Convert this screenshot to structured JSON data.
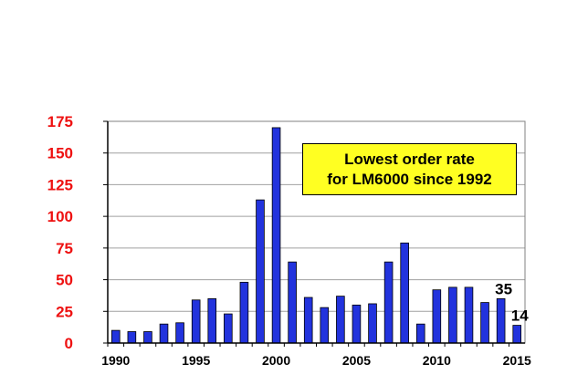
{
  "chart_data": {
    "type": "bar",
    "categories": [
      "1990",
      "1991",
      "1992",
      "1993",
      "1994",
      "1995",
      "1996",
      "1997",
      "1998",
      "1999",
      "2000",
      "2001",
      "2002",
      "2003",
      "2004",
      "2005",
      "2006",
      "2007",
      "2008",
      "2009",
      "2010",
      "2011",
      "2012",
      "2013",
      "2014",
      "2015"
    ],
    "values": [
      10,
      9,
      9,
      15,
      16,
      34,
      35,
      23,
      48,
      113,
      170,
      64,
      36,
      28,
      37,
      30,
      31,
      64,
      79,
      15,
      42,
      44,
      44,
      32,
      35,
      14
    ],
    "x_tick_labels": [
      "1990",
      "1995",
      "2000",
      "2005",
      "2010",
      "2015"
    ],
    "y_tick_labels": [
      "0",
      "25",
      "50",
      "75",
      "100",
      "125",
      "150",
      "175"
    ],
    "ylim": [
      0,
      175
    ],
    "title": "",
    "xlabel": "",
    "ylabel": "",
    "grid": "horizontal",
    "bar_color": "#2233dd",
    "y_tick_color": "#ee1111",
    "data_labels": [
      {
        "category": "2014",
        "text": "35"
      },
      {
        "category": "2015",
        "text": "14"
      }
    ],
    "annotation": {
      "lines": [
        "Lowest order rate",
        "for LM6000 since 1992"
      ],
      "background": "#ffff22"
    }
  }
}
